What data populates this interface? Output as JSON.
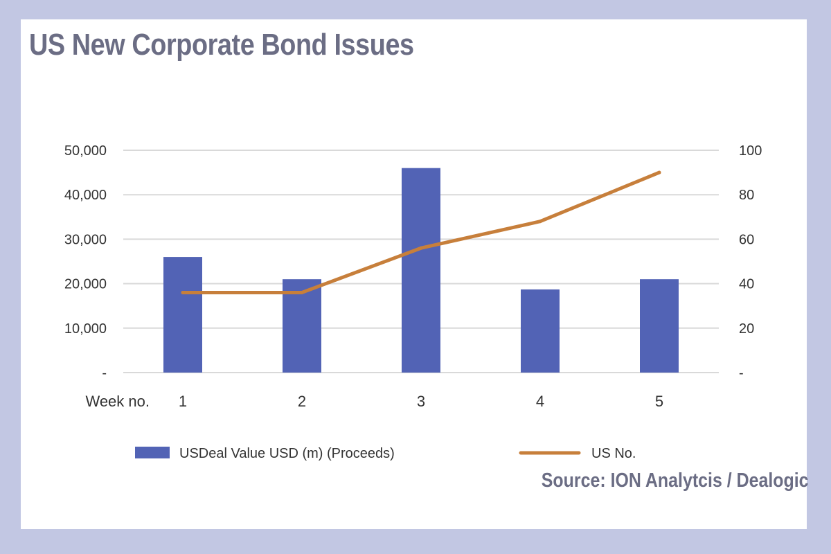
{
  "title": "US New Corporate Bond Issues",
  "source": "Source: ION Analytcis / Dealogic",
  "chart_data": {
    "type": "bar",
    "x_axis_label": "Week no.",
    "categories": [
      "1",
      "2",
      "3",
      "4",
      "5"
    ],
    "left_axis": {
      "ylim": [
        0,
        50000
      ],
      "tick_labels": [
        "-",
        "10,000",
        "20,000",
        "30,000",
        "40,000",
        "50,000"
      ]
    },
    "right_axis": {
      "ylim": [
        0,
        100
      ],
      "tick_labels": [
        "-",
        "20",
        "40",
        "60",
        "80",
        "100"
      ]
    },
    "grid": "horizontal",
    "legend_position": "bottom",
    "series": [
      {
        "name": "USDeal Value USD (m) (Proceeds)",
        "type": "bar",
        "axis": "left",
        "color": "#5263b5",
        "values": [
          26000,
          21000,
          46000,
          18700,
          21000
        ]
      },
      {
        "name": "US No.",
        "type": "line",
        "axis": "right",
        "color": "#c77f3b",
        "values": [
          36,
          36,
          56,
          68,
          90
        ]
      }
    ]
  }
}
